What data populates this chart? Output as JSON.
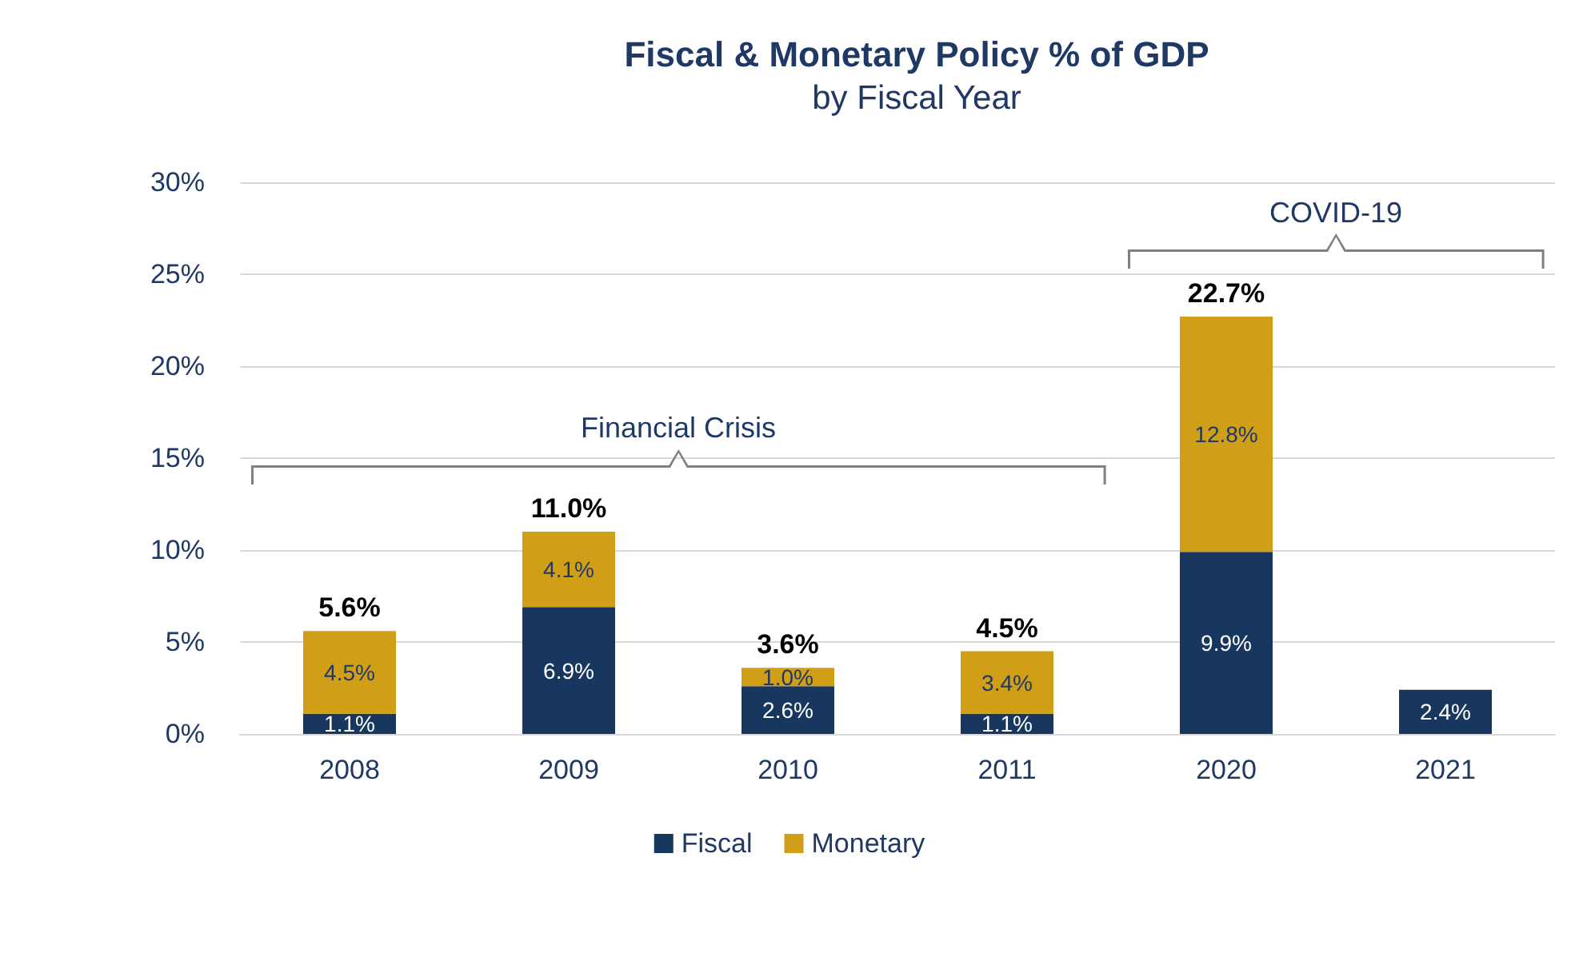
{
  "chart_data": {
    "type": "bar",
    "title": "Fiscal & Monetary Policy % of GDP",
    "subtitle": "by Fiscal Year",
    "categories": [
      "2008",
      "2009",
      "2010",
      "2011",
      "2020",
      "2021"
    ],
    "stacked": true,
    "series": [
      {
        "name": "Fiscal",
        "color": "#17375e",
        "values": [
          1.1,
          6.9,
          2.6,
          1.1,
          9.9,
          2.4
        ],
        "value_labels": [
          "1.1%",
          "6.9%",
          "2.6%",
          "1.1%",
          "9.9%",
          "2.4%"
        ]
      },
      {
        "name": "Monetary",
        "color": "#d19f17",
        "values": [
          4.5,
          4.1,
          1.0,
          3.4,
          12.8,
          null
        ],
        "value_labels": [
          "4.5%",
          "4.1%",
          "1.0%",
          "3.4%",
          "12.8%",
          null
        ]
      }
    ],
    "totals": [
      "5.6%",
      "11.0%",
      "3.6%",
      "4.5%",
      "22.7%",
      null
    ],
    "ylim": [
      0,
      30
    ],
    "yticks": [
      {
        "value": 0,
        "label": "0%"
      },
      {
        "value": 5,
        "label": "5%"
      },
      {
        "value": 10,
        "label": "10%"
      },
      {
        "value": 15,
        "label": "15%"
      },
      {
        "value": 20,
        "label": "20%"
      },
      {
        "value": 25,
        "label": "25%"
      },
      {
        "value": 30,
        "label": "30%"
      }
    ],
    "annotations": [
      "Financial Crisis",
      "COVID-19"
    ],
    "grid": "y",
    "legend": "bottom"
  }
}
